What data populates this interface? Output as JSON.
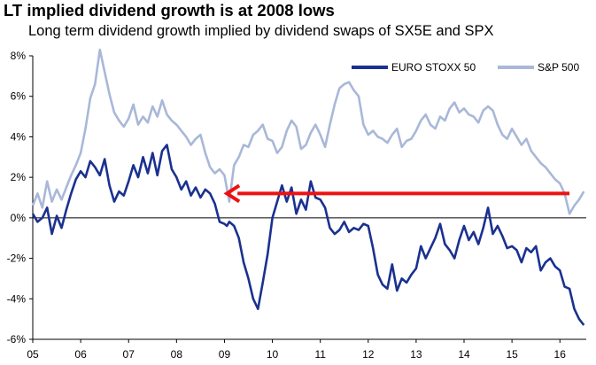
{
  "title": "LT implied dividend growth is at 2008 lows",
  "subtitle": "Long term dividend growth implied by dividend swaps of SX5E and SPX",
  "colors": {
    "euro": "#1a3190",
    "spx": "#a9b8d8",
    "arrow": "#ee1111",
    "axis": "#000000"
  },
  "chart_data": {
    "type": "line",
    "title": "LT implied dividend growth is at 2008 lows",
    "subtitle": "Long term dividend growth implied by dividend swaps of SX5E and SPX",
    "xlabel": "",
    "ylabel": "",
    "xlim": [
      2005.0,
      2016.55
    ],
    "ylim": [
      -6,
      8
    ],
    "x_ticks": [
      "05",
      "06",
      "07",
      "08",
      "09",
      "10",
      "11",
      "12",
      "13",
      "14",
      "15",
      "16"
    ],
    "y_ticks": [
      "-6%",
      "-4%",
      "-2%",
      "0%",
      "2%",
      "4%",
      "6%",
      "8%"
    ],
    "grid": false,
    "legend_position": "top-right",
    "series": [
      {
        "name": "EURO STOXX 50",
        "x": [
          2005.0,
          2005.1,
          2005.2,
          2005.3,
          2005.4,
          2005.5,
          2005.6,
          2005.7,
          2005.8,
          2005.9,
          2006.0,
          2006.1,
          2006.2,
          2006.3,
          2006.4,
          2006.5,
          2006.6,
          2006.7,
          2006.8,
          2006.9,
          2007.0,
          2007.1,
          2007.2,
          2007.3,
          2007.4,
          2007.5,
          2007.6,
          2007.7,
          2007.8,
          2007.9,
          2008.0,
          2008.1,
          2008.2,
          2008.3,
          2008.4,
          2008.5,
          2008.6,
          2008.7,
          2008.8,
          2008.9,
          2009.0,
          2009.05,
          2009.1,
          2009.2,
          2009.3,
          2009.4,
          2009.5,
          2009.6,
          2009.7,
          2009.8,
          2009.9,
          2010.0,
          2010.1,
          2010.2,
          2010.3,
          2010.4,
          2010.5,
          2010.6,
          2010.7,
          2010.8,
          2010.9,
          2011.0,
          2011.1,
          2011.2,
          2011.3,
          2011.4,
          2011.5,
          2011.6,
          2011.7,
          2011.8,
          2011.9,
          2012.0,
          2012.1,
          2012.2,
          2012.3,
          2012.4,
          2012.5,
          2012.6,
          2012.7,
          2012.8,
          2012.9,
          2013.0,
          2013.1,
          2013.2,
          2013.3,
          2013.4,
          2013.5,
          2013.6,
          2013.7,
          2013.8,
          2013.9,
          2014.0,
          2014.1,
          2014.2,
          2014.3,
          2014.4,
          2014.5,
          2014.6,
          2014.7,
          2014.8,
          2014.9,
          2015.0,
          2015.1,
          2015.2,
          2015.3,
          2015.4,
          2015.5,
          2015.6,
          2015.7,
          2015.8,
          2015.9,
          2016.0,
          2016.1,
          2016.2,
          2016.3,
          2016.4,
          2016.5
        ],
        "values": [
          0.2,
          -0.2,
          0.0,
          0.5,
          -0.8,
          0.1,
          -0.5,
          0.4,
          1.2,
          1.9,
          2.3,
          2.0,
          2.8,
          2.5,
          2.1,
          2.9,
          1.6,
          0.8,
          1.3,
          1.1,
          1.8,
          2.6,
          2.0,
          3.0,
          2.2,
          3.2,
          2.1,
          3.3,
          3.6,
          2.4,
          2.0,
          1.4,
          1.8,
          1.1,
          1.5,
          1.0,
          1.4,
          1.2,
          0.7,
          -0.2,
          -0.3,
          -0.4,
          -0.2,
          -0.4,
          -1.0,
          -2.2,
          -3.0,
          -4.0,
          -4.5,
          -3.2,
          -1.8,
          0.0,
          0.8,
          1.6,
          0.8,
          1.5,
          0.2,
          0.9,
          0.4,
          1.8,
          1.0,
          0.9,
          0.5,
          -0.5,
          -0.8,
          -0.6,
          -0.2,
          -0.7,
          -0.5,
          -0.6,
          -0.3,
          -0.4,
          -1.5,
          -2.8,
          -3.3,
          -3.5,
          -2.3,
          -3.6,
          -3.0,
          -3.2,
          -2.8,
          -2.5,
          -1.4,
          -2.0,
          -1.5,
          -1.0,
          -0.3,
          -1.3,
          -1.6,
          -2.0,
          -1.1,
          -0.4,
          -1.1,
          -0.7,
          -1.3,
          -0.5,
          0.5,
          -0.8,
          -0.4,
          -0.9,
          -1.5,
          -1.4,
          -1.6,
          -2.2,
          -1.5,
          -1.7,
          -1.4,
          -2.6,
          -2.2,
          -2.0,
          -2.4,
          -2.6,
          -3.4,
          -3.5,
          -4.5,
          -5.0,
          -5.3
        ]
      },
      {
        "name": "S&P 500",
        "x": [
          2005.0,
          2005.1,
          2005.2,
          2005.3,
          2005.4,
          2005.5,
          2005.6,
          2005.7,
          2005.8,
          2005.9,
          2006.0,
          2006.1,
          2006.2,
          2006.3,
          2006.4,
          2006.5,
          2006.6,
          2006.7,
          2006.8,
          2006.9,
          2007.0,
          2007.1,
          2007.2,
          2007.3,
          2007.4,
          2007.5,
          2007.6,
          2007.7,
          2007.8,
          2007.9,
          2008.0,
          2008.1,
          2008.2,
          2008.3,
          2008.4,
          2008.5,
          2008.6,
          2008.7,
          2008.8,
          2008.9,
          2009.0,
          2009.1,
          2009.2,
          2009.3,
          2009.4,
          2009.5,
          2009.6,
          2009.7,
          2009.8,
          2009.9,
          2010.0,
          2010.1,
          2010.2,
          2010.3,
          2010.4,
          2010.5,
          2010.6,
          2010.7,
          2010.8,
          2010.9,
          2011.0,
          2011.1,
          2011.2,
          2011.3,
          2011.4,
          2011.5,
          2011.6,
          2011.7,
          2011.8,
          2011.9,
          2012.0,
          2012.1,
          2012.2,
          2012.3,
          2012.4,
          2012.5,
          2012.6,
          2012.7,
          2012.8,
          2012.9,
          2013.0,
          2013.1,
          2013.2,
          2013.3,
          2013.4,
          2013.5,
          2013.6,
          2013.7,
          2013.8,
          2013.9,
          2014.0,
          2014.1,
          2014.2,
          2014.3,
          2014.4,
          2014.5,
          2014.6,
          2014.7,
          2014.8,
          2014.9,
          2015.0,
          2015.1,
          2015.2,
          2015.3,
          2015.4,
          2015.5,
          2015.6,
          2015.7,
          2015.8,
          2015.9,
          2016.0,
          2016.1,
          2016.2,
          2016.3,
          2016.4,
          2016.5
        ],
        "values": [
          0.6,
          1.2,
          0.5,
          1.8,
          0.8,
          1.4,
          0.9,
          1.5,
          2.1,
          2.6,
          3.2,
          4.4,
          5.9,
          6.6,
          8.3,
          7.2,
          6.1,
          5.2,
          4.8,
          4.5,
          4.9,
          5.6,
          4.6,
          5.0,
          4.7,
          5.5,
          5.0,
          5.8,
          5.1,
          4.8,
          4.6,
          4.3,
          4.0,
          3.6,
          3.9,
          4.1,
          3.2,
          2.5,
          2.2,
          2.4,
          2.1,
          0.8,
          2.6,
          3.0,
          3.6,
          3.5,
          4.1,
          4.3,
          4.6,
          3.9,
          3.8,
          3.2,
          3.5,
          4.3,
          4.8,
          4.5,
          3.4,
          3.6,
          4.2,
          4.6,
          4.1,
          3.5,
          4.6,
          5.6,
          6.4,
          6.6,
          6.7,
          6.3,
          6.0,
          4.6,
          4.1,
          4.3,
          4.0,
          3.9,
          3.7,
          4.1,
          4.4,
          3.5,
          3.8,
          3.9,
          4.3,
          4.8,
          5.1,
          4.6,
          4.4,
          5.0,
          4.8,
          5.4,
          5.7,
          5.2,
          5.4,
          5.1,
          5.0,
          4.7,
          5.3,
          5.5,
          5.3,
          4.6,
          4.1,
          3.9,
          4.4,
          4.0,
          3.6,
          3.9,
          3.3,
          3.0,
          2.7,
          2.5,
          2.2,
          1.9,
          1.7,
          1.2,
          0.2,
          0.6,
          0.9,
          1.3
        ]
      }
    ],
    "annotations": [
      {
        "type": "arrow",
        "from": [
          2016.2,
          1.2
        ],
        "to": [
          2009.05,
          1.2
        ]
      }
    ]
  }
}
